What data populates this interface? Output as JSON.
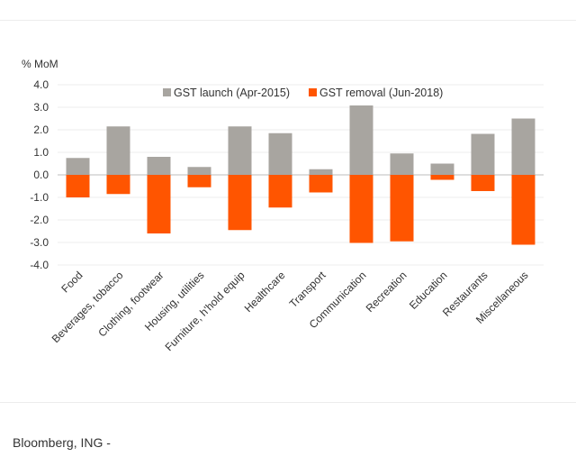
{
  "chart_data": {
    "type": "bar",
    "ylabel": "% MoM",
    "ylim": [
      -4.0,
      4.0
    ],
    "yticks": [
      "4.0",
      "3.0",
      "2.0",
      "1.0",
      "0.0",
      "-1.0",
      "-2.0",
      "-3.0",
      "-4.0"
    ],
    "ytick_values": [
      4,
      3,
      2,
      1,
      0,
      -1,
      -2,
      -3,
      -4
    ],
    "legend_position": "top-right",
    "categories": [
      "Food",
      "Beverages, tobacco",
      "Clothing, footwear",
      "Housing, utilities",
      "Furniture, h'hold equip",
      "Healthcare",
      "Transport",
      "Communication",
      "Recreation",
      "Education",
      "Restaurants",
      "Miscellaneous"
    ],
    "series": [
      {
        "name": "GST launch (Apr-2015)",
        "color": "#a8a5a0",
        "values": [
          0.75,
          2.15,
          0.8,
          0.35,
          2.15,
          1.85,
          0.25,
          3.08,
          0.95,
          0.5,
          1.82,
          2.5
        ]
      },
      {
        "name": "GST removal (Jun-2018)",
        "color": "#ff5500",
        "values": [
          -1.0,
          -0.85,
          -2.6,
          -0.55,
          -2.45,
          -1.45,
          -0.78,
          -3.02,
          -2.95,
          -0.22,
          -0.72,
          -3.1
        ]
      }
    ]
  },
  "footer": {
    "source": "Bloomberg, ING -"
  }
}
